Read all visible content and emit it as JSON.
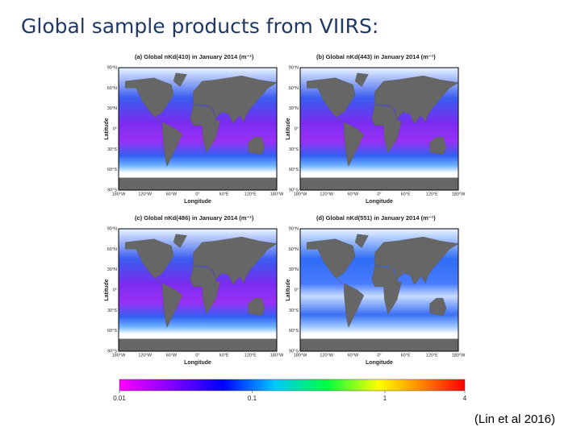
{
  "title": "Global sample products from VIIRS:",
  "panels": [
    {
      "title": "(a) Global nKd(410) in January 2014 (m⁻¹)",
      "ylabel": "Latitude",
      "xlabel": "Longitude"
    },
    {
      "title": "(b) Global nKd(443) in January 2014 (m⁻¹)",
      "ylabel": "Latitude",
      "xlabel": "Longitude"
    },
    {
      "title": "(c) Global nKd(486) in January 2014 (m⁻¹)",
      "ylabel": "Latitude",
      "xlabel": "Longitude"
    },
    {
      "title": "(d) Global nKd(551) in January 2014 (m⁻¹)",
      "ylabel": "Latitude",
      "xlabel": "Longitude"
    }
  ],
  "lat_ticks": [
    "90°N",
    "60°N",
    "30°N",
    "0°",
    "30°S",
    "60°S",
    "90°S"
  ],
  "lon_ticks": [
    "180°W",
    "120°W",
    "60°W",
    "0°",
    "60°E",
    "120°E",
    "180°W"
  ],
  "colorbar": {
    "lim": [
      0.01,
      4
    ],
    "ticks": [
      0.01,
      0.1,
      1,
      4
    ],
    "log": true
  },
  "citation": "(Lin et al 2016)"
}
